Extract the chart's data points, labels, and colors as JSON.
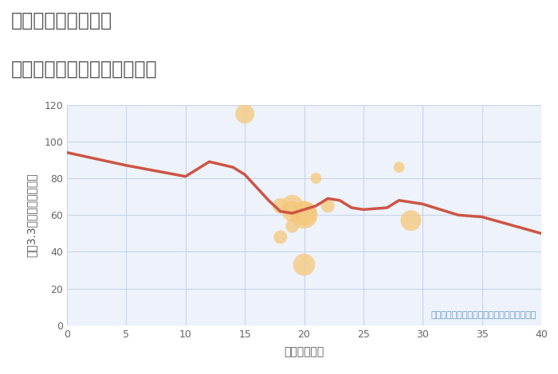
{
  "title_line1": "神奈川県大和市草柳",
  "title_line2": "築年数別中古マンション価格",
  "xlabel": "築年数（年）",
  "ylabel": "坪（3.3㎡）単価（万円）",
  "annotation": "円の大きさは、取引のあった物件面積を示す",
  "line_x": [
    0,
    5,
    10,
    12,
    14,
    15,
    16,
    17,
    18,
    19,
    20,
    21,
    22,
    23,
    24,
    25,
    27,
    28,
    30,
    31,
    33,
    35,
    40
  ],
  "line_y": [
    94,
    87,
    81,
    89,
    86,
    82,
    75,
    68,
    62,
    61,
    63,
    65,
    69,
    68,
    64,
    63,
    64,
    68,
    66,
    64,
    60,
    59,
    50
  ],
  "scatter_x": [
    15,
    18,
    18,
    19,
    19,
    19,
    20,
    20,
    20,
    21,
    22,
    28,
    29
  ],
  "scatter_y": [
    115,
    48,
    65,
    54,
    62,
    65,
    61,
    60,
    33,
    80,
    65,
    86,
    57
  ],
  "scatter_size": [
    300,
    150,
    200,
    150,
    350,
    400,
    500,
    600,
    400,
    100,
    150,
    100,
    350
  ],
  "scatter_color": "#f5c87a",
  "scatter_alpha": 0.75,
  "line_color": "#cc5544",
  "line_width": 2.5,
  "background_color": "#eef2fa",
  "grid_color": "#c8d4e8",
  "xlim": [
    0,
    40
  ],
  "ylim": [
    0,
    120
  ],
  "xticks": [
    0,
    5,
    10,
    15,
    20,
    25,
    30,
    35,
    40
  ],
  "yticks": [
    0,
    20,
    40,
    60,
    80,
    100,
    120
  ],
  "title_color": "#555555",
  "annotation_color": "#6699cc",
  "title_fontsize": 17,
  "label_fontsize": 10
}
